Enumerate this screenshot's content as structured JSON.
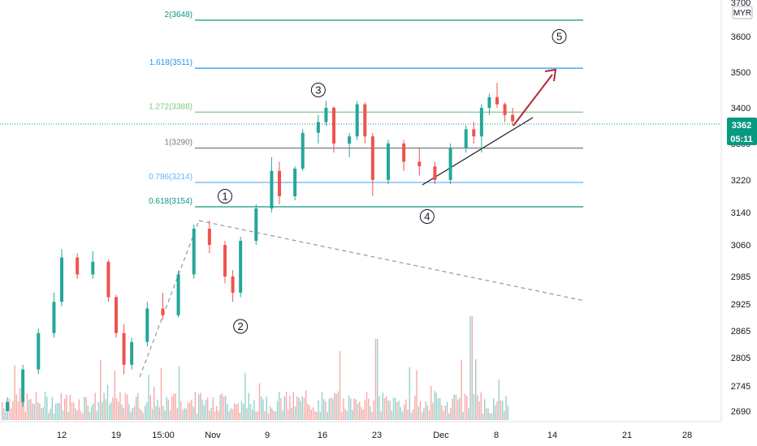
{
  "chart_data": {
    "type": "candlestick",
    "currency": "MYR",
    "y_ticks": [
      3700,
      3600,
      3500,
      3400,
      3300,
      3220,
      3140,
      3060,
      2985,
      2925,
      2865,
      2805,
      2745,
      2690
    ],
    "x_ticks": [
      "12",
      "19",
      "15:00",
      "Nov",
      "9",
      "16",
      "23",
      "Dec",
      "8",
      "14",
      "21",
      "28"
    ],
    "fib_levels": [
      {
        "label": "2(3648)",
        "value": 3648,
        "color": "#089981"
      },
      {
        "label": "1.618(3511)",
        "value": 3511,
        "color": "#2196f3"
      },
      {
        "label": "1.272(3388)",
        "value": 3388,
        "color": "#81c784"
      },
      {
        "label": "1(3290)",
        "value": 3290,
        "color": "#787b86"
      },
      {
        "label": "0.786(3214)",
        "value": 3214,
        "color": "#64b5f6"
      },
      {
        "label": "0.618(3154)",
        "value": 3154,
        "color": "#089981"
      }
    ],
    "waves": [
      {
        "label": "1",
        "x": "Nov 2",
        "y": 3180
      },
      {
        "label": "2",
        "x": "Nov 4",
        "y": 2875
      },
      {
        "label": "3",
        "x": "Nov 14",
        "y": 3450
      },
      {
        "label": "4",
        "x": "Nov 28",
        "y": 3130
      },
      {
        "label": "5",
        "x": "Dec 15",
        "y": 3600
      }
    ],
    "last_price": {
      "value": "3362",
      "time": "05:11"
    },
    "price_line_color": "#089981",
    "up_color": "#26a69a",
    "down_color": "#ef5350",
    "projection_color": "#b22833",
    "candles": [
      {
        "x": "Oct 5",
        "o": 2690,
        "h": 2720,
        "l": 2680,
        "c": 2710
      },
      {
        "x": "Oct 7",
        "o": 2710,
        "h": 2790,
        "l": 2700,
        "c": 2780
      },
      {
        "x": "Oct 9",
        "o": 2780,
        "h": 2870,
        "l": 2770,
        "c": 2860
      },
      {
        "x": "Oct 11",
        "o": 2860,
        "h": 2950,
        "l": 2850,
        "c": 2930
      },
      {
        "x": "Oct 12",
        "o": 2930,
        "h": 3050,
        "l": 2920,
        "c": 3030
      },
      {
        "x": "Oct 14",
        "o": 3030,
        "h": 3040,
        "l": 2980,
        "c": 2990
      },
      {
        "x": "Oct 16",
        "o": 2990,
        "h": 3045,
        "l": 2980,
        "c": 3020
      },
      {
        "x": "Oct 18",
        "o": 3020,
        "h": 3025,
        "l": 2930,
        "c": 2940
      },
      {
        "x": "Oct 19",
        "o": 2940,
        "h": 2945,
        "l": 2850,
        "c": 2860
      },
      {
        "x": "Oct 20",
        "o": 2860,
        "h": 2880,
        "l": 2770,
        "c": 2790
      },
      {
        "x": "Oct 21",
        "o": 2790,
        "h": 2850,
        "l": 2780,
        "c": 2840
      },
      {
        "x": "Oct 23",
        "o": 2840,
        "h": 2930,
        "l": 2830,
        "c": 2915
      },
      {
        "x": "Oct 25",
        "o": 2915,
        "h": 2950,
        "l": 2890,
        "c": 2900
      },
      {
        "x": "Oct 27",
        "o": 2900,
        "h": 3000,
        "l": 2895,
        "c": 2990
      },
      {
        "x": "Oct 29",
        "o": 2990,
        "h": 3110,
        "l": 2980,
        "c": 3100
      },
      {
        "x": "Oct 31",
        "o": 3100,
        "h": 3120,
        "l": 3040,
        "c": 3060
      },
      {
        "x": "Nov 2",
        "o": 3060,
        "h": 3070,
        "l": 2970,
        "c": 2985
      },
      {
        "x": "Nov 3",
        "o": 2985,
        "h": 3000,
        "l": 2930,
        "c": 2950
      },
      {
        "x": "Nov 4",
        "o": 2950,
        "h": 3080,
        "l": 2940,
        "c": 3070
      },
      {
        "x": "Nov 6",
        "o": 3070,
        "h": 3160,
        "l": 3060,
        "c": 3150
      },
      {
        "x": "Nov 8",
        "o": 3150,
        "h": 3270,
        "l": 3140,
        "c": 3240
      },
      {
        "x": "Nov 9",
        "o": 3240,
        "h": 3260,
        "l": 3160,
        "c": 3180
      },
      {
        "x": "Nov 11",
        "o": 3180,
        "h": 3250,
        "l": 3170,
        "c": 3245
      },
      {
        "x": "Nov 12",
        "o": 3245,
        "h": 3340,
        "l": 3240,
        "c": 3330
      },
      {
        "x": "Nov 14",
        "o": 3330,
        "h": 3380,
        "l": 3300,
        "c": 3360
      },
      {
        "x": "Nov 15",
        "o": 3360,
        "h": 3420,
        "l": 3350,
        "c": 3400
      },
      {
        "x": "Nov 16",
        "o": 3400,
        "h": 3405,
        "l": 3280,
        "c": 3300
      },
      {
        "x": "Nov 18",
        "o": 3300,
        "h": 3330,
        "l": 3270,
        "c": 3320
      },
      {
        "x": "Nov 19",
        "o": 3320,
        "h": 3420,
        "l": 3310,
        "c": 3410
      },
      {
        "x": "Nov 20",
        "o": 3410,
        "h": 3415,
        "l": 3300,
        "c": 3320
      },
      {
        "x": "Nov 21",
        "o": 3320,
        "h": 3330,
        "l": 3180,
        "c": 3220
      },
      {
        "x": "Nov 23",
        "o": 3220,
        "h": 3310,
        "l": 3210,
        "c": 3300
      },
      {
        "x": "Nov 25",
        "o": 3300,
        "h": 3310,
        "l": 3240,
        "c": 3260
      },
      {
        "x": "Nov 27",
        "o": 3260,
        "h": 3290,
        "l": 3230,
        "c": 3250
      },
      {
        "x": "Nov 29",
        "o": 3250,
        "h": 3260,
        "l": 3210,
        "c": 3220
      },
      {
        "x": "Dec 1",
        "o": 3220,
        "h": 3300,
        "l": 3210,
        "c": 3290
      },
      {
        "x": "Dec 3",
        "o": 3290,
        "h": 3350,
        "l": 3280,
        "c": 3340
      },
      {
        "x": "Dec 4",
        "o": 3340,
        "h": 3360,
        "l": 3300,
        "c": 3320
      },
      {
        "x": "Dec 5",
        "o": 3320,
        "h": 3410,
        "l": 3280,
        "c": 3400
      },
      {
        "x": "Dec 6",
        "o": 3400,
        "h": 3440,
        "l": 3380,
        "c": 3430
      },
      {
        "x": "Dec 7",
        "o": 3430,
        "h": 3470,
        "l": 3400,
        "c": 3410
      },
      {
        "x": "Dec 8",
        "o": 3410,
        "h": 3415,
        "l": 3360,
        "c": 3380
      },
      {
        "x": "Dec 9",
        "o": 3380,
        "h": 3400,
        "l": 3350,
        "c": 3362
      }
    ]
  }
}
